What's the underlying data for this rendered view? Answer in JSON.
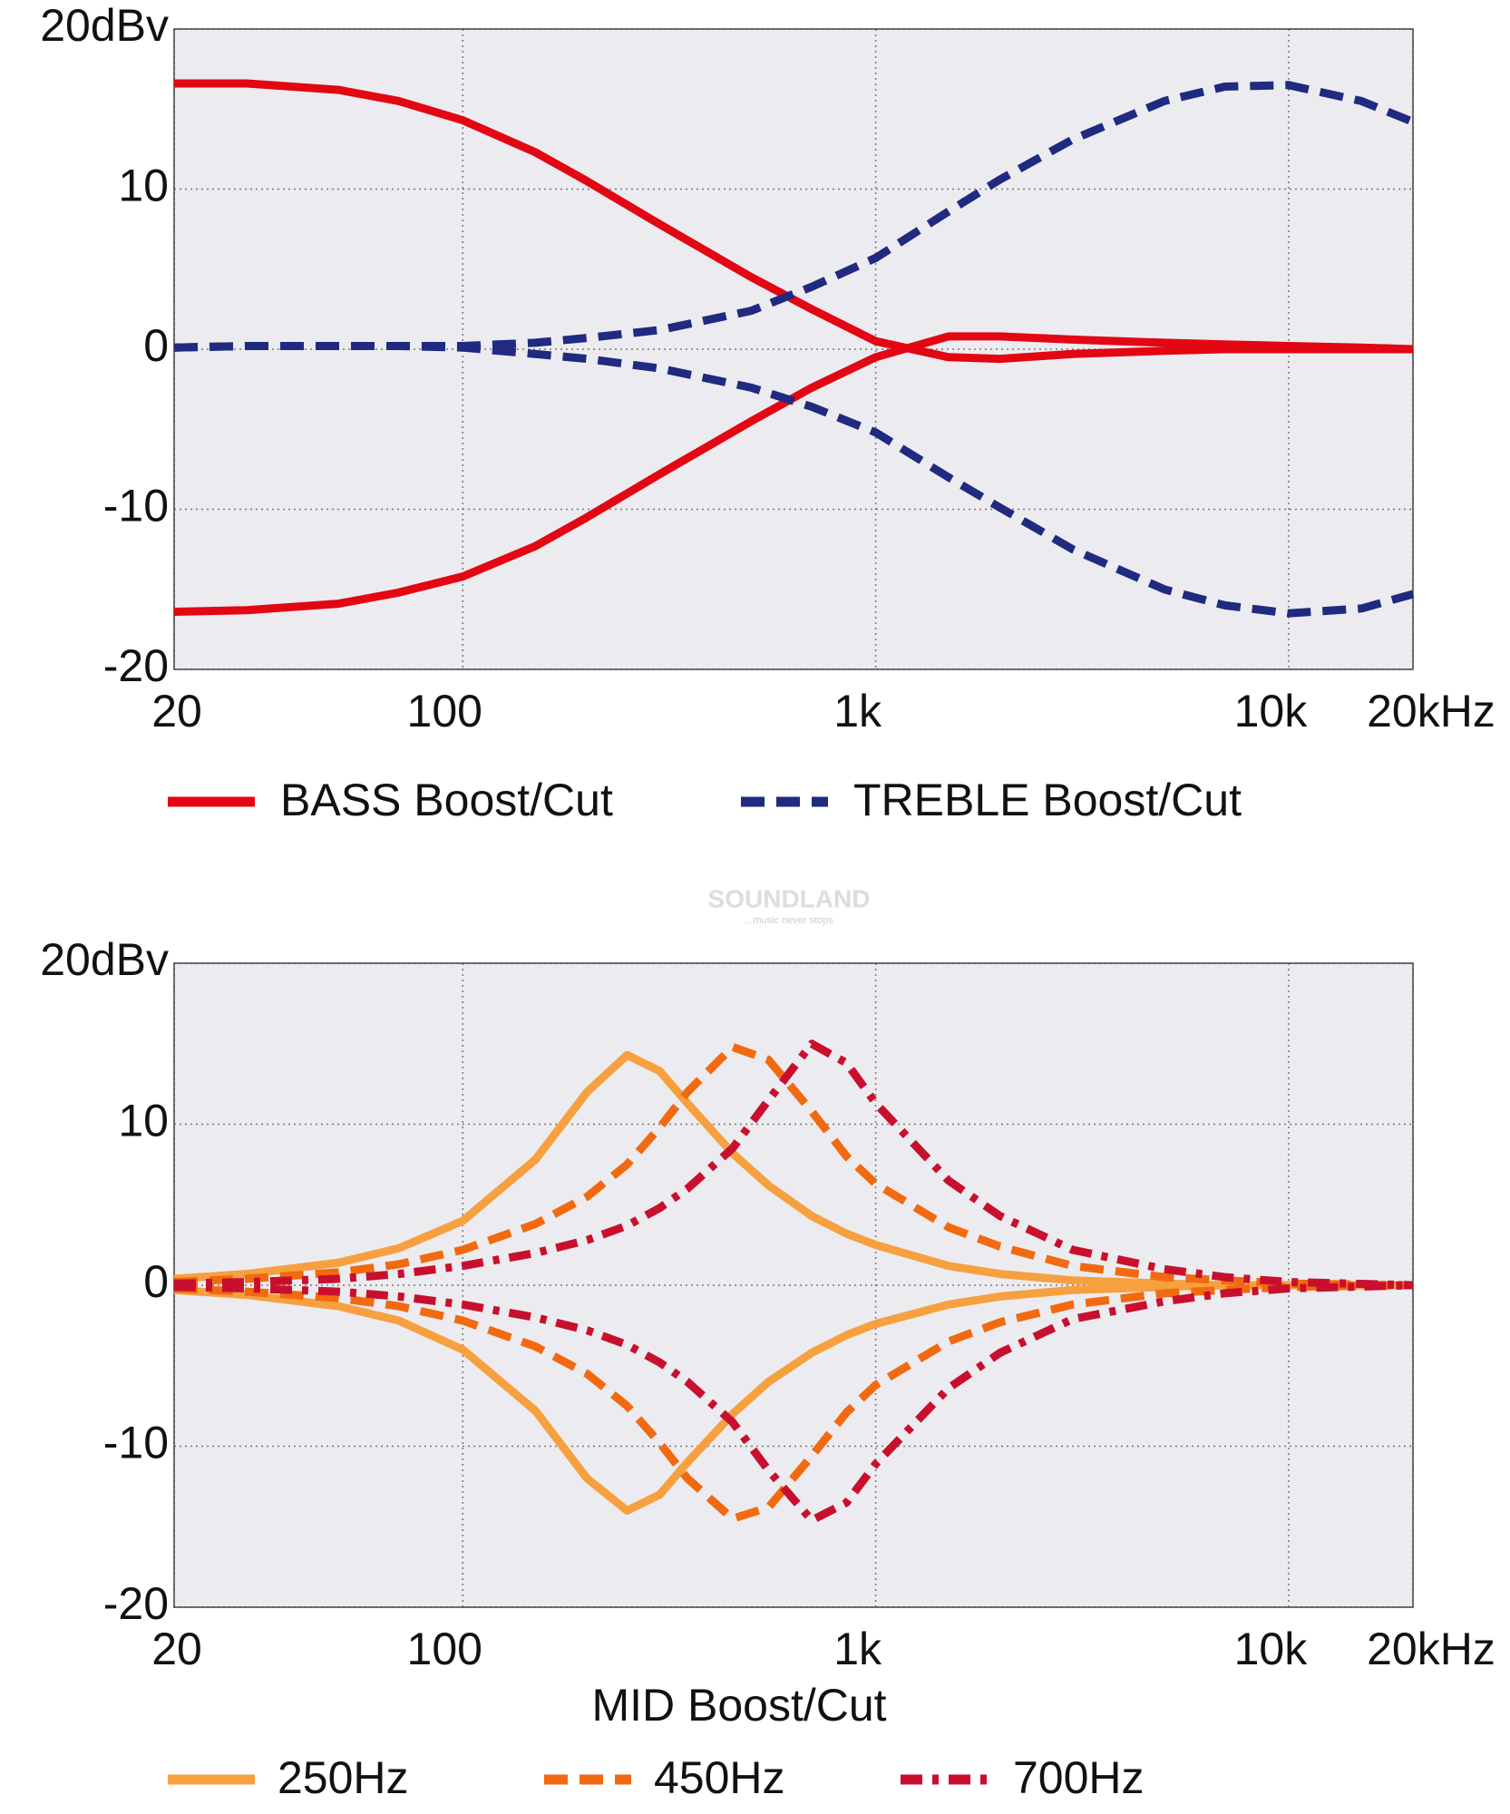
{
  "chart_data": [
    {
      "type": "line",
      "log_x": true,
      "grid": true,
      "x": [
        20,
        30,
        50,
        70,
        100,
        150,
        200,
        300,
        500,
        700,
        1000,
        1500,
        2000,
        3000,
        5000,
        7000,
        10000,
        15000,
        20000
      ],
      "xlim": [
        20,
        20000
      ],
      "xticks": [
        20,
        100,
        {
          "value": 1000,
          "label": "1k"
        },
        {
          "value": 10000,
          "label": "10k"
        },
        {
          "value": 20000,
          "label": "20kHz"
        }
      ],
      "ylim": [
        -20,
        20
      ],
      "yticks": [
        {
          "value": 20,
          "label": "20dBv"
        },
        10,
        0,
        -10,
        -20
      ],
      "series": [
        {
          "name": "BASS Boost/Cut",
          "color": "#e30613",
          "dash": "solid",
          "lines": [
            [
              16.6,
              16.6,
              16.2,
              15.5,
              14.3,
              12.3,
              10.5,
              7.8,
              4.5,
              2.5,
              0.5,
              -0.5,
              -0.6,
              -0.3,
              -0.1,
              0,
              0,
              0,
              0
            ],
            [
              -16.4,
              -16.3,
              -15.9,
              -15.2,
              -14.2,
              -12.3,
              -10.5,
              -7.8,
              -4.5,
              -2.4,
              -0.5,
              0.8,
              0.8,
              0.6,
              0.4,
              0.3,
              0.2,
              0.1,
              0
            ]
          ]
        },
        {
          "name": "TREBLE Boost/Cut",
          "color": "#1f2a80",
          "dash": "dashed",
          "lines": [
            [
              0.1,
              0.2,
              0.2,
              0.2,
              0.2,
              0.4,
              0.7,
              1.2,
              2.4,
              3.9,
              5.7,
              8.6,
              10.6,
              13.1,
              15.5,
              16.4,
              16.5,
              15.5,
              14.2
            ],
            [
              0.1,
              0.2,
              0.2,
              0.2,
              0.1,
              -0.3,
              -0.6,
              -1.2,
              -2.4,
              -3.6,
              -5.2,
              -8,
              -9.9,
              -12.5,
              -15,
              -16,
              -16.5,
              -16.2,
              -15.3
            ]
          ]
        }
      ]
    },
    {
      "type": "line",
      "log_x": true,
      "grid": true,
      "x_label": "MID Boost/Cut",
      "x": [
        20,
        30,
        50,
        70,
        100,
        150,
        200,
        250,
        300,
        350,
        450,
        550,
        700,
        850,
        1000,
        1500,
        2000,
        3000,
        5000,
        7000,
        10000,
        20000
      ],
      "xlim": [
        20,
        20000
      ],
      "xticks": [
        20,
        100,
        {
          "value": 1000,
          "label": "1k"
        },
        {
          "value": 10000,
          "label": "10k"
        },
        {
          "value": 20000,
          "label": "20kHz"
        }
      ],
      "ylim": [
        -20,
        20
      ],
      "yticks": [
        {
          "value": 20,
          "label": "20dBv"
        },
        10,
        0,
        -10,
        -20
      ],
      "series": [
        {
          "name": "250Hz",
          "color": "#f7a040",
          "dash": "solid",
          "lines": [
            [
              0.4,
              0.7,
              1.4,
              2.3,
              4,
              7.8,
              12,
              14.3,
              13.3,
              11.3,
              8.2,
              6.2,
              4.3,
              3.2,
              2.5,
              1.2,
              0.7,
              0.3,
              0.1,
              0,
              0,
              0
            ],
            [
              -0.3,
              -0.6,
              -1.3,
              -2.2,
              -4,
              -7.8,
              -12,
              -14,
              -13,
              -11,
              -8,
              -6,
              -4.2,
              -3.1,
              -2.4,
              -1.2,
              -0.7,
              -0.3,
              -0.1,
              0,
              0,
              0
            ]
          ]
        },
        {
          "name": "450Hz",
          "color": "#f26a10",
          "dash": "dashed",
          "lines": [
            [
              0.2,
              0.4,
              0.8,
              1.3,
              2.2,
              3.8,
              5.5,
              7.5,
              9.8,
              12,
              14.8,
              14,
              10.8,
              8,
              6.3,
              3.6,
              2.4,
              1.2,
              0.5,
              0.3,
              0.1,
              0
            ],
            [
              -0.2,
              -0.4,
              -0.8,
              -1.3,
              -2.2,
              -3.8,
              -5.5,
              -7.5,
              -9.8,
              -12,
              -14.5,
              -13.8,
              -10.6,
              -7.9,
              -6.2,
              -3.5,
              -2.3,
              -1.2,
              -0.5,
              -0.3,
              -0.1,
              0
            ]
          ]
        },
        {
          "name": "700Hz",
          "color": "#c8102e",
          "dash": "dashdot",
          "lines": [
            [
              0.1,
              0.2,
              0.4,
              0.7,
              1.2,
              2,
              2.8,
              3.7,
              4.8,
              6,
              8.5,
              11.5,
              15,
              13.8,
              11.3,
              6.5,
              4.3,
              2.2,
              1,
              0.5,
              0.2,
              0
            ],
            [
              -0.1,
              -0.2,
              -0.4,
              -0.7,
              -1.2,
              -2,
              -2.8,
              -3.7,
              -4.8,
              -6,
              -8.5,
              -11.5,
              -14.6,
              -13.5,
              -11.1,
              -6.4,
              -4.2,
              -2.1,
              -1,
              -0.5,
              -0.2,
              0
            ]
          ]
        }
      ]
    }
  ],
  "watermark": {
    "brand": "SOUNDLAND",
    "tagline": "...music never stops"
  }
}
